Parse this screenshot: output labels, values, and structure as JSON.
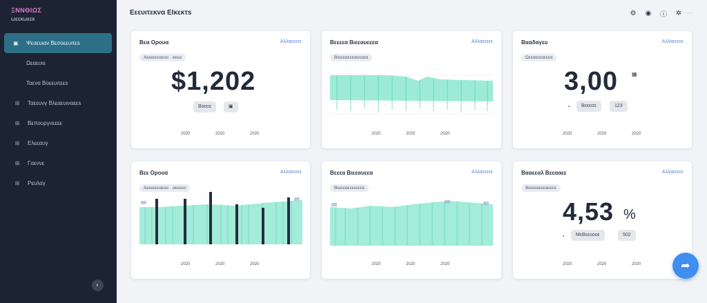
{
  "app": {
    "brand": "ΞΝΝΘΙΩΣ",
    "brand_sub": "ωεεκωεεκ",
    "page_title": "Εεευιτεκνα ΕΙκεκτs",
    "header_icons": [
      "settings-icon",
      "bell-icon",
      "info-icon",
      "gear-icon"
    ],
    "header_link": "·····"
  },
  "sidebar": {
    "items": [
      {
        "label": "Ψεαευιαν Βεσοεευιτεs",
        "icon": "dashboard-icon",
        "active": true
      },
      {
        "label": "Ωεαευιs",
        "icon": "",
        "sub": true
      },
      {
        "label": "Ταενα Βοεευιτεεs",
        "icon": "",
        "sub": true
      },
      {
        "label": "Ταεευνγ Βλεαευιναεεs",
        "icon": "grid-icon"
      },
      {
        "label": "Βεπουργνεεεε",
        "icon": "grid-icon"
      },
      {
        "label": "Ελεεαυγ",
        "icon": "grid-icon"
      },
      {
        "label": "Γαεννε",
        "icon": "grid-icon"
      },
      {
        "label": "Ρευλαγ",
        "icon": "grid-icon"
      }
    ],
    "toggle": "◐"
  },
  "cards": [
    {
      "title": "Βεα Ορουα",
      "link": "Αλλαεεεεε",
      "chip": "Αεεκεεεαευα · αεεα",
      "value": "$1,202",
      "pills": [
        "Βοεεα",
        "▣"
      ],
      "xlabels": [
        "2020",
        "2020",
        "2020"
      ]
    },
    {
      "title": "Βεεεεα Βιεεαυεεεα",
      "link": "Αλλαεεεεε",
      "chip": "Βεεεεαεεεαεεααα",
      "xlabels": [
        "2020",
        "2020",
        "2020"
      ]
    },
    {
      "title": "Βααδαγευ",
      "link": "Αλλαεεεεε",
      "chip": "Ωεεαεεεαεεεα",
      "value": "3,00",
      "icon_after": "▦",
      "pills": [
        "Βεεεαs",
        "123"
      ],
      "icon_before": "◔",
      "xlabels": [
        "2020",
        "2020",
        "2020"
      ]
    },
    {
      "title": "Βεε Ορουα",
      "link": "Αλλαεεεεε",
      "chip": "Αεεκεεεαευα · αεεεεα",
      "xlabels": [
        "2020",
        "2020",
        "2020"
      ]
    },
    {
      "title": "Βεεεα Βιεεαυεεα",
      "link": "Αλλαεεεεε",
      "chip": "Βεεεεαεεεεεεεα",
      "xlabels": [
        "2020",
        "2020",
        "2020"
      ]
    },
    {
      "title": "Βααεεαλ Βεεααεε",
      "link": "Αλλαεεεεε",
      "chip": "Βεεεεαεεεαεεεα",
      "value": "4,53",
      "value_suffix": "%",
      "pills": [
        "ΜεΒεεοοοε",
        "502"
      ],
      "icon_before": "◔",
      "xlabels": [
        "2020",
        "2020",
        "2020"
      ]
    }
  ],
  "colors": {
    "accent": "#3f8ef0",
    "teal_area": "#7fe3c8",
    "bar_dark": "#252d40",
    "sidebar": "#1c2433"
  },
  "fab_icon": "share-icon"
}
